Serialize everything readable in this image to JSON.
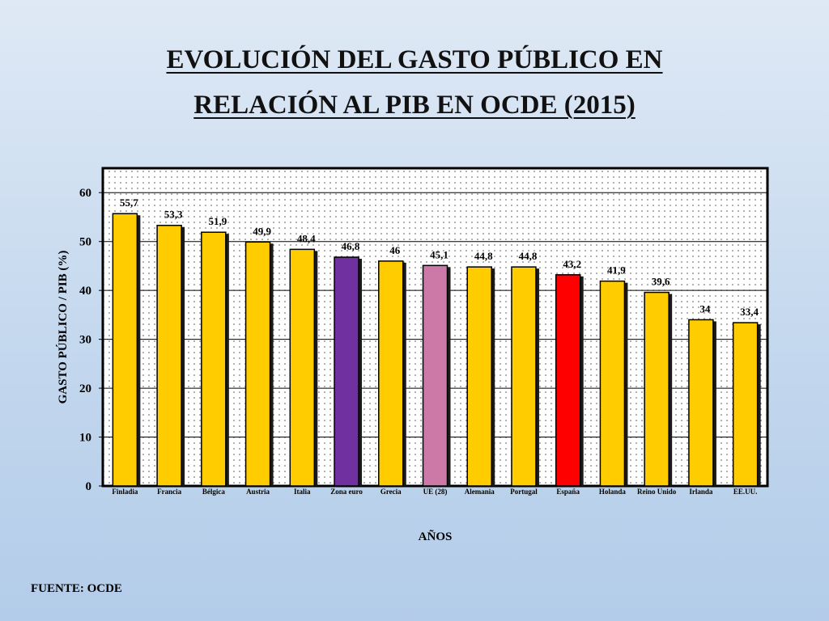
{
  "slide": {
    "title_line1": "EVOLUCIÓN DEL GASTO PÚBLICO EN",
    "title_line2": "RELACIÓN AL PIB EN OCDE (2015)",
    "source": "FUENTE: OCDE"
  },
  "colors": {
    "default_bar": "#FFCC00",
    "euro_zone_bar": "#7030A0",
    "eu28_bar": "#CC79A7",
    "spain_bar": "#FF0000"
  },
  "chart_data": {
    "type": "bar",
    "title": "EVOLUCIÓN DEL GASTO PÚBLICO EN RELACIÓN AL PIB EN OCDE (2015)",
    "xlabel": "AÑOS",
    "ylabel": "GASTO PÚBLICO / PIB  (%)",
    "ylim": [
      0,
      65
    ],
    "yticks": [
      0,
      10,
      20,
      30,
      40,
      50,
      60
    ],
    "grid": true,
    "legend": "none",
    "categories": [
      "Finladia",
      "Francia",
      "Bélgica",
      "Austria",
      "Italia",
      "Zona euro",
      "Grecia",
      "UE (28)",
      "Alemania",
      "Portugal",
      "España",
      "Holanda",
      "Reino Unido",
      "Irlanda",
      "EE.UU."
    ],
    "values": [
      55.7,
      53.3,
      51.9,
      49.9,
      48.4,
      46.8,
      46,
      45.1,
      44.8,
      44.8,
      43.2,
      41.9,
      39.6,
      34,
      33.4
    ],
    "value_labels": [
      "55,7",
      "53,3",
      "51,9",
      "49,9",
      "48,4",
      "46,8",
      "46",
      "45,1",
      "44,8",
      "44,8",
      "43,2",
      "41,9",
      "39,6",
      "34",
      "33,4"
    ],
    "bar_colors": [
      "#FFCC00",
      "#FFCC00",
      "#FFCC00",
      "#FFCC00",
      "#FFCC00",
      "#7030A0",
      "#FFCC00",
      "#CC79A7",
      "#FFCC00",
      "#FFCC00",
      "#FF0000",
      "#FFCC00",
      "#FFCC00",
      "#FFCC00",
      "#FFCC00"
    ]
  }
}
